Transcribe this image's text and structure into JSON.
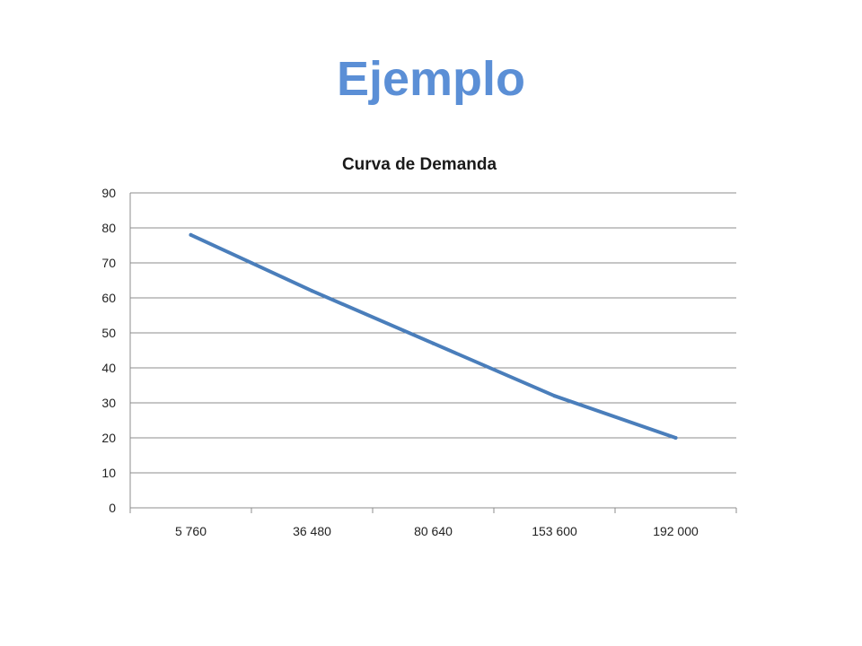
{
  "slide": {
    "title": "Ejemplo"
  },
  "colors": {
    "title": "#5b8fd6",
    "series": "#4a7ebb",
    "grid": "#8c8c8c"
  },
  "chart_data": {
    "type": "line",
    "title": "Curva de Demanda",
    "xlabel": "",
    "ylabel": "",
    "categories": [
      "5 760",
      "36 480",
      "80 640",
      "153 600",
      "192 000"
    ],
    "series": [
      {
        "values": [
          78,
          62,
          47,
          32,
          20
        ]
      }
    ],
    "ylim": [
      0,
      90
    ],
    "yticks": [
      "0",
      "10",
      "20",
      "30",
      "40",
      "50",
      "60",
      "70",
      "80",
      "90"
    ],
    "grid": true,
    "legend": "none"
  }
}
